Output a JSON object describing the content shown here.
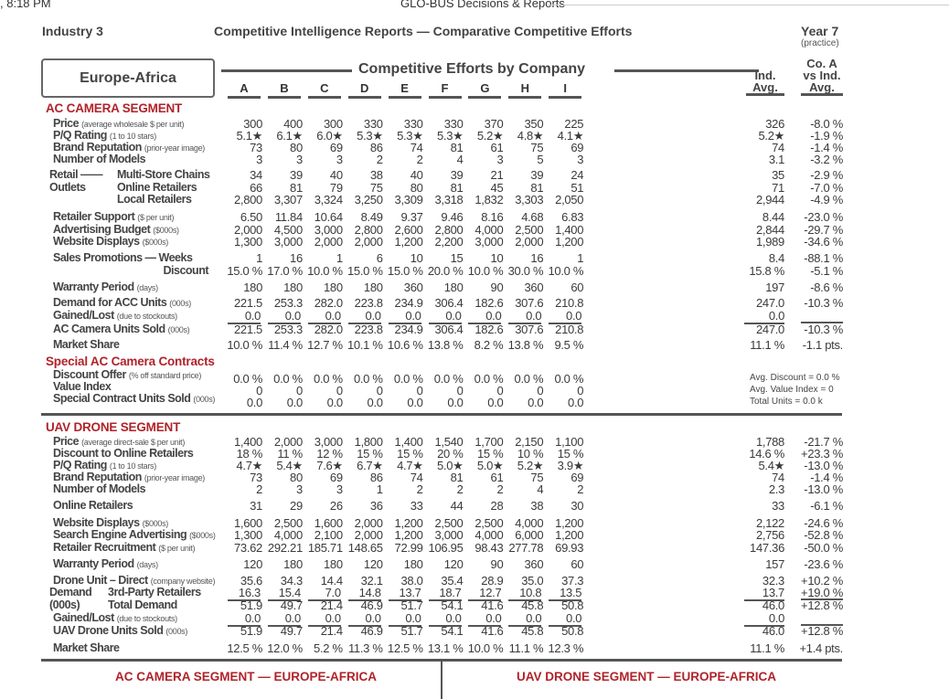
{
  "topbar": {
    "time": ", 8:18 PM",
    "app_title": "GLO-BUS Decisions & Reports"
  },
  "header": {
    "industry": "Industry 3",
    "report_title": "Competitive Intelligence Reports — Comparative Competitive Efforts",
    "year": "Year 7",
    "year_note": "(practice)"
  },
  "region": "Europe-Africa",
  "table_title": "Competitive Efforts by Company",
  "companies": [
    "A",
    "B",
    "C",
    "D",
    "E",
    "F",
    "G",
    "H",
    "I"
  ],
  "ind_avg_header": "Ind. Avg.",
  "vs_avg_header": "Co. A vs Ind. Avg.",
  "ac": {
    "title": "AC CAMERA SEGMENT",
    "rows": [
      {
        "label": "Price",
        "note": "(average wholesale $ per unit)",
        "values": [
          "300",
          "400",
          "300",
          "330",
          "330",
          "330",
          "370",
          "350",
          "225"
        ],
        "ind_avg": "326",
        "vs_avg": "-8.0 %"
      },
      {
        "label": "P/Q Rating",
        "note": "(1 to 10 stars)",
        "values": [
          "5.1★",
          "6.1★",
          "6.0★",
          "5.3★",
          "5.3★",
          "5.3★",
          "5.2★",
          "4.8★",
          "4.1★"
        ],
        "ind_avg": "5.2★",
        "vs_avg": "-1.9 %"
      },
      {
        "label": "Brand Reputation",
        "note": "(prior-year image)",
        "values": [
          "73",
          "80",
          "69",
          "86",
          "74",
          "81",
          "61",
          "75",
          "69"
        ],
        "ind_avg": "74",
        "vs_avg": "-1.4 %"
      },
      {
        "label": "Number of Models",
        "note": "",
        "values": [
          "3",
          "3",
          "3",
          "2",
          "2",
          "4",
          "3",
          "5",
          "3"
        ],
        "ind_avg": "3.1",
        "vs_avg": "-3.2 %"
      },
      {
        "prefix": "Retail ——",
        "label": "Multi-Store Chains",
        "note": "",
        "values": [
          "34",
          "39",
          "40",
          "38",
          "40",
          "39",
          "21",
          "39",
          "24"
        ],
        "ind_avg": "35",
        "vs_avg": "-2.9 %"
      },
      {
        "prefix": "Outlets",
        "label": "Online Retailers",
        "note": "",
        "values": [
          "66",
          "81",
          "79",
          "75",
          "80",
          "81",
          "45",
          "81",
          "51"
        ],
        "ind_avg": "71",
        "vs_avg": "-7.0 %"
      },
      {
        "label": "Local Retailers",
        "note": "",
        "values": [
          "2,800",
          "3,307",
          "3,324",
          "3,250",
          "3,309",
          "3,318",
          "1,832",
          "3,303",
          "2,050"
        ],
        "ind_avg": "2,944",
        "vs_avg": "-4.9 %"
      },
      {
        "label": "Retailer Support",
        "note": "($ per unit)",
        "values": [
          "6.50",
          "11.84",
          "10.64",
          "8.49",
          "9.37",
          "9.46",
          "8.16",
          "4.68",
          "6.83"
        ],
        "ind_avg": "8.44",
        "vs_avg": "-23.0 %"
      },
      {
        "label": "Advertising Budget",
        "note": "($000s)",
        "values": [
          "2,000",
          "4,500",
          "3,000",
          "2,800",
          "2,600",
          "2,800",
          "4,000",
          "2,500",
          "1,400"
        ],
        "ind_avg": "2,844",
        "vs_avg": "-29.7 %"
      },
      {
        "label": "Website Displays",
        "note": "($000s)",
        "values": [
          "1,300",
          "3,000",
          "2,000",
          "2,000",
          "1,200",
          "2,200",
          "3,000",
          "2,000",
          "1,200"
        ],
        "ind_avg": "1,989",
        "vs_avg": "-34.6 %"
      },
      {
        "label": "Sales Promotions — Weeks",
        "note": "",
        "values": [
          "1",
          "16",
          "1",
          "6",
          "10",
          "15",
          "10",
          "16",
          "1"
        ],
        "ind_avg": "8.4",
        "vs_avg": "-88.1 %"
      },
      {
        "label": "Discount",
        "note": "",
        "values": [
          "15.0 %",
          "17.0 %",
          "10.0 %",
          "15.0 %",
          "15.0 %",
          "20.0 %",
          "10.0 %",
          "30.0 %",
          "10.0 %"
        ],
        "ind_avg": "15.8 %",
        "vs_avg": "-5.1 %"
      },
      {
        "label": "Warranty Period",
        "note": "(days)",
        "values": [
          "180",
          "180",
          "180",
          "180",
          "360",
          "180",
          "90",
          "360",
          "60"
        ],
        "ind_avg": "197",
        "vs_avg": "-8.6 %"
      },
      {
        "label": "Demand for ACC Units",
        "note": "(000s)",
        "values": [
          "221.5",
          "253.3",
          "282.0",
          "223.8",
          "234.9",
          "306.4",
          "182.6",
          "307.6",
          "210.8"
        ],
        "ind_avg": "247.0",
        "vs_avg": "-10.3 %"
      },
      {
        "label": "Gained/Lost",
        "note": "(due to stockouts)",
        "values": [
          "0.0",
          "0.0",
          "0.0",
          "0.0",
          "0.0",
          "0.0",
          "0.0",
          "0.0",
          "0.0"
        ],
        "ind_avg": "0.0",
        "vs_avg": ""
      },
      {
        "label": "AC Camera Units Sold",
        "note": "(000s)",
        "values": [
          "221.5",
          "253.3",
          "282.0",
          "223.8",
          "234.9",
          "306.4",
          "182.6",
          "307.6",
          "210.8"
        ],
        "ind_avg": "247.0",
        "vs_avg": "-10.3 %"
      },
      {
        "label": "Market Share",
        "note": "",
        "values": [
          "10.0 %",
          "11.4 %",
          "12.7 %",
          "10.1 %",
          "10.6 %",
          "13.8 %",
          "8.2 %",
          "13.8 %",
          "9.5 %"
        ],
        "ind_avg": "11.1 %",
        "vs_avg": "-1.1 pts."
      }
    ]
  },
  "special": {
    "title": "Special AC Camera Contracts",
    "rows": [
      {
        "label": "Discount Offer",
        "note": "(% off standard price)",
        "values": [
          "0.0 %",
          "0.0 %",
          "0.0 %",
          "0.0 %",
          "0.0 %",
          "0.0 %",
          "0.0 %",
          "0.0 %",
          "0.0 %"
        ]
      },
      {
        "label": "Value Index",
        "note": "",
        "values": [
          "0",
          "0",
          "0",
          "0",
          "0",
          "0",
          "0",
          "0",
          "0"
        ]
      },
      {
        "label": "Special Contract Units Sold",
        "note": "(000s)",
        "values": [
          "0.0",
          "0.0",
          "0.0",
          "0.0",
          "0.0",
          "0.0",
          "0.0",
          "0.0",
          "0.0"
        ]
      }
    ],
    "summary": [
      "Avg. Discount = 0.0 %",
      "Avg. Value Index = 0",
      "Total Units = 0.0 k"
    ]
  },
  "uav": {
    "title": "UAV DRONE SEGMENT",
    "rows": [
      {
        "label": "Price",
        "note": "(average direct-sale $ per unit)",
        "values": [
          "1,400",
          "2,000",
          "3,000",
          "1,800",
          "1,400",
          "1,540",
          "1,700",
          "2,150",
          "1,100"
        ],
        "ind_avg": "1,788",
        "vs_avg": "-21.7 %"
      },
      {
        "label": "Discount to Online Retailers",
        "note": "",
        "values": [
          "18 %",
          "11 %",
          "12 %",
          "15 %",
          "15 %",
          "20 %",
          "15 %",
          "10 %",
          "15 %"
        ],
        "ind_avg": "14.6 %",
        "vs_avg": "+23.3 %"
      },
      {
        "label": "P/Q Rating",
        "note": "(1 to 10 stars)",
        "values": [
          "4.7★",
          "5.4★",
          "7.6★",
          "6.7★",
          "4.7★",
          "5.0★",
          "5.0★",
          "5.2★",
          "3.9★"
        ],
        "ind_avg": "5.4★",
        "vs_avg": "-13.0 %"
      },
      {
        "label": "Brand Reputation",
        "note": "(prior-year image)",
        "values": [
          "73",
          "80",
          "69",
          "86",
          "74",
          "81",
          "61",
          "75",
          "69"
        ],
        "ind_avg": "74",
        "vs_avg": "-1.4 %"
      },
      {
        "label": "Number of Models",
        "note": "",
        "values": [
          "2",
          "3",
          "3",
          "1",
          "2",
          "2",
          "2",
          "4",
          "2"
        ],
        "ind_avg": "2.3",
        "vs_avg": "-13.0 %"
      },
      {
        "label": "Online Retailers",
        "note": "",
        "values": [
          "31",
          "29",
          "26",
          "36",
          "33",
          "44",
          "28",
          "38",
          "30"
        ],
        "ind_avg": "33",
        "vs_avg": "-6.1 %"
      },
      {
        "label": "Website Displays",
        "note": "($000s)",
        "values": [
          "1,600",
          "2,500",
          "1,600",
          "2,000",
          "1,200",
          "2,500",
          "2,500",
          "4,000",
          "1,200"
        ],
        "ind_avg": "2,122",
        "vs_avg": "-24.6 %"
      },
      {
        "label": "Search Engine Advertising",
        "note": "($000s)",
        "values": [
          "1,300",
          "4,000",
          "2,100",
          "2,000",
          "1,200",
          "3,000",
          "4,000",
          "6,000",
          "1,200"
        ],
        "ind_avg": "2,756",
        "vs_avg": "-52.8 %"
      },
      {
        "label": "Retailer Recruitment",
        "note": "($ per unit)",
        "values": [
          "73.62",
          "292.21",
          "185.71",
          "148.65",
          "72.99",
          "106.95",
          "98.43",
          "277.78",
          "69.93"
        ],
        "ind_avg": "147.36",
        "vs_avg": "-50.0 %"
      },
      {
        "label": "Warranty Period",
        "note": "(days)",
        "values": [
          "120",
          "180",
          "180",
          "120",
          "180",
          "120",
          "90",
          "360",
          "60"
        ],
        "ind_avg": "157",
        "vs_avg": "-23.6 %"
      },
      {
        "label": "Drone Unit – Direct",
        "note": "(company website)",
        "values": [
          "35.6",
          "34.3",
          "14.4",
          "32.1",
          "38.0",
          "35.4",
          "28.9",
          "35.0",
          "37.3"
        ],
        "ind_avg": "32.3",
        "vs_avg": "+10.2 %"
      },
      {
        "prefix": "Demand",
        "label": "3rd-Party Retailers",
        "note": "",
        "values": [
          "16.3",
          "15.4",
          "7.0",
          "14.8",
          "13.7",
          "18.7",
          "12.7",
          "10.8",
          "13.5"
        ],
        "ind_avg": "13.7",
        "vs_avg": "+19.0 %"
      },
      {
        "prefix": "(000s)",
        "label": "Total Demand",
        "note": "",
        "values": [
          "51.9",
          "49.7",
          "21.4",
          "46.9",
          "51.7",
          "54.1",
          "41.6",
          "45.8",
          "50.8"
        ],
        "ind_avg": "46.0",
        "vs_avg": "+12.8 %"
      },
      {
        "label": "Gained/Lost",
        "note": "(due to stockouts)",
        "values": [
          "0.0",
          "0.0",
          "0.0",
          "0.0",
          "0.0",
          "0.0",
          "0.0",
          "0.0",
          "0.0"
        ],
        "ind_avg": "0.0",
        "vs_avg": ""
      },
      {
        "label": "UAV Drone Units Sold",
        "note": "(000s)",
        "values": [
          "51.9",
          "49.7",
          "21.4",
          "46.9",
          "51.7",
          "54.1",
          "41.6",
          "45.8",
          "50.8"
        ],
        "ind_avg": "46.0",
        "vs_avg": "+12.8 %"
      },
      {
        "label": "Market Share",
        "note": "",
        "values": [
          "12.5 %",
          "12.0 %",
          "5.2 %",
          "11.3 %",
          "12.5 %",
          "13.1 %",
          "10.0 %",
          "11.1 %",
          "12.3 %"
        ],
        "ind_avg": "11.1 %",
        "vs_avg": "+1.4 pts."
      }
    ]
  },
  "footer": {
    "left": "AC CAMERA SEGMENT — EUROPE-AFRICA",
    "right": "UAV DRONE SEGMENT — EUROPE-AFRICA"
  }
}
